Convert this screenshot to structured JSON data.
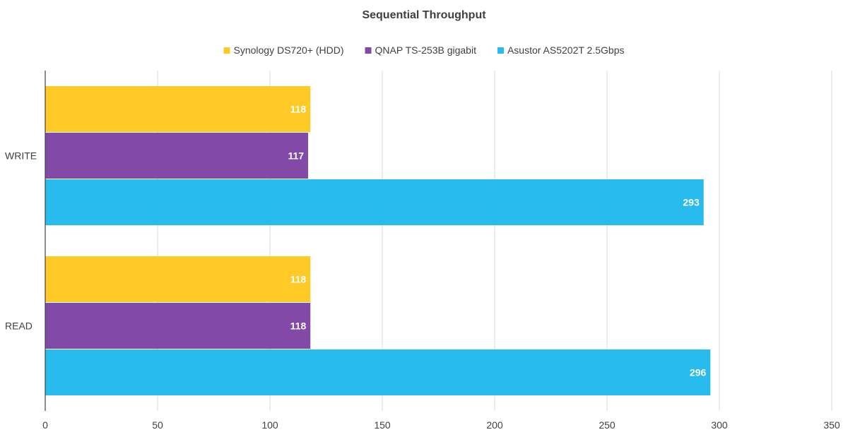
{
  "chart_data": {
    "type": "bar",
    "orientation": "horizontal",
    "title": "Sequential Throughput",
    "xlabel": "",
    "ylabel": "",
    "categories": [
      "WRITE",
      "READ"
    ],
    "series": [
      {
        "name": "Synology DS720+ (HDD)",
        "color": "#FFC926",
        "values": [
          118,
          118
        ]
      },
      {
        "name": "QNAP TS-253B gigabit",
        "color": "#8249A6",
        "values": [
          117,
          118
        ]
      },
      {
        "name": "Asustor AS5202T 2.5Gbps",
        "color": "#28BBEE",
        "values": [
          293,
          296
        ]
      }
    ],
    "xlim": [
      0,
      350
    ],
    "xticks": [
      0,
      50,
      100,
      150,
      200,
      250,
      300,
      350
    ],
    "grid": true,
    "legend_position": "top",
    "data_labels": true
  }
}
